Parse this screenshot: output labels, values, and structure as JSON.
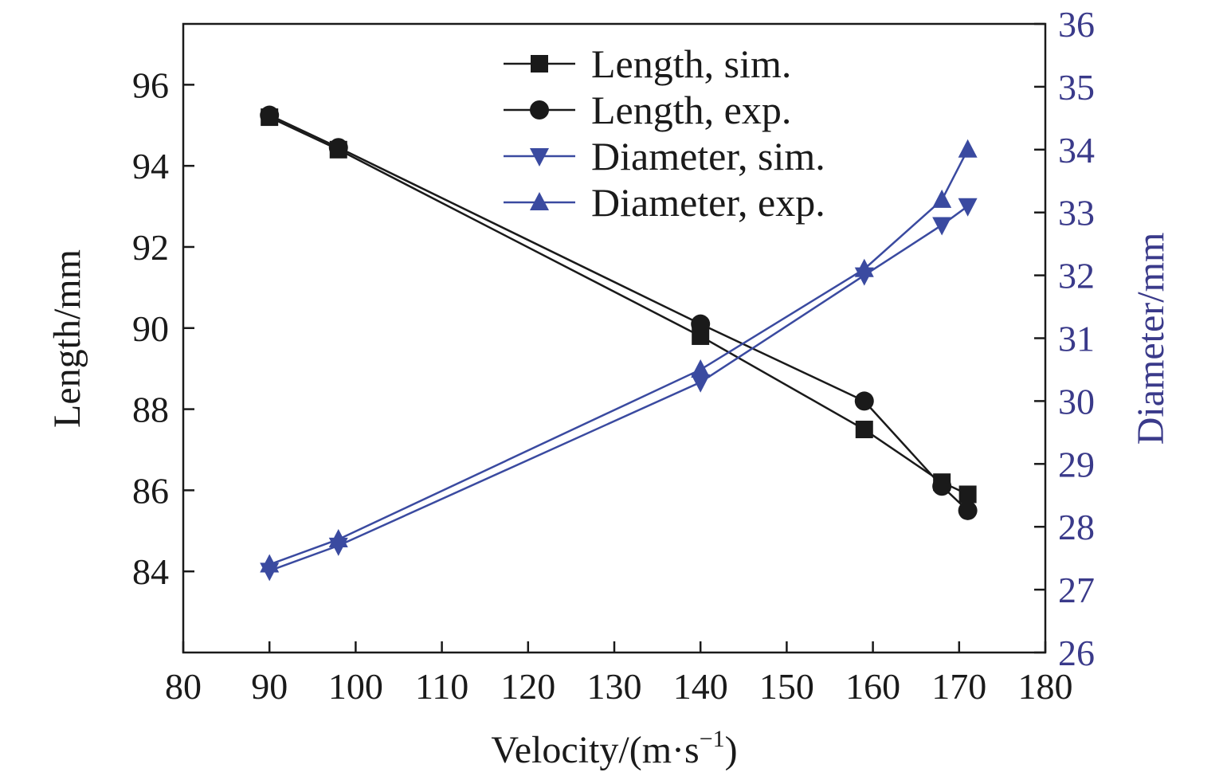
{
  "chart_data": {
    "type": "line",
    "xlabel_prefix": "Velocity/(m·s",
    "xlabel_sup": "−1",
    "xlabel_suffix": ")",
    "ylabel_left": "Length/mm",
    "ylabel_right": "Diameter/mm",
    "xlim": [
      80,
      180
    ],
    "ylim_left": [
      82,
      97.5
    ],
    "ylim_right": [
      26,
      36
    ],
    "x_ticks": [
      80,
      90,
      100,
      110,
      120,
      130,
      140,
      150,
      160,
      170,
      180
    ],
    "y_left_ticks": [
      84,
      86,
      88,
      90,
      92,
      94,
      96
    ],
    "y_right_ticks": [
      26,
      27,
      28,
      29,
      30,
      31,
      32,
      33,
      34,
      35,
      36
    ],
    "legend_position": "top-center",
    "series": [
      {
        "name": "Length, sim.",
        "axis": "left",
        "marker": "square",
        "color": "#1a1a1a",
        "x": [
          90,
          98,
          140,
          159,
          168,
          171
        ],
        "values": [
          95.2,
          94.4,
          89.8,
          87.5,
          86.2,
          85.9
        ]
      },
      {
        "name": "Length, exp.",
        "axis": "left",
        "marker": "circle",
        "color": "#1a1a1a",
        "x": [
          90,
          98,
          140,
          159,
          168,
          171
        ],
        "values": [
          95.25,
          94.45,
          90.1,
          88.2,
          86.1,
          85.5
        ]
      },
      {
        "name": "Diameter, sim.",
        "axis": "right",
        "marker": "triangle-down",
        "color": "#3a4aa0",
        "x": [
          90,
          98,
          140,
          159,
          168,
          171
        ],
        "values": [
          27.3,
          27.7,
          30.3,
          32.0,
          32.8,
          33.1
        ]
      },
      {
        "name": "Diameter, exp.",
        "axis": "right",
        "marker": "triangle-up",
        "color": "#3a4aa0",
        "x": [
          90,
          98,
          140,
          159,
          168,
          171
        ],
        "values": [
          27.4,
          27.8,
          30.5,
          32.1,
          33.2,
          34.0
        ]
      }
    ],
    "colors": {
      "left_axis": "#1a1a1a",
      "right_axis": "#3a3a8a",
      "frame": "#1a1a1a"
    }
  }
}
